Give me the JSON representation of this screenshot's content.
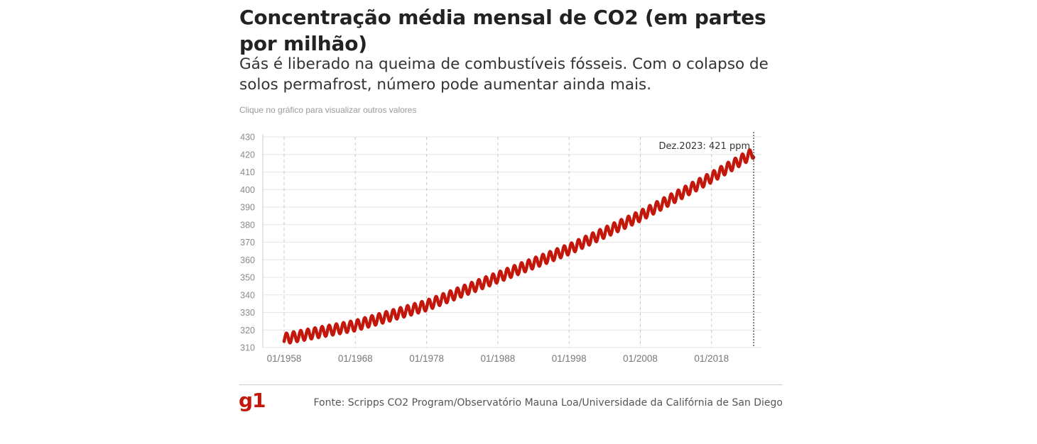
{
  "header": {
    "title": "Concentração média mensal de CO2 (em partes por milhão)",
    "subtitle": "Gás é liberado na queima de combustíveis fósseis. Com o colapso de solos permafrost, número pode aumentar ainda mais.",
    "hint": "Clique no gráfico para visualizar outros valores"
  },
  "footer": {
    "logo": "g1",
    "source": "Fonte: Scripps CO2 Program/Observatório Mauna Loa/Universidade da Califórnia de San Diego"
  },
  "colors": {
    "series": "#c4170c",
    "brand": "#c4170c",
    "grid": "#e6e6e6",
    "vgrid": "#c8c8c8"
  },
  "chart_data": {
    "type": "line",
    "title": "Concentração média mensal de CO2 (em partes por milhão)",
    "ylim": [
      310,
      430
    ],
    "yticks": [
      310,
      320,
      330,
      340,
      350,
      360,
      370,
      380,
      390,
      400,
      410,
      420,
      430
    ],
    "xrange": [
      "01/1958",
      "12/2023"
    ],
    "xticks": [
      "01/1958",
      "01/1968",
      "01/1978",
      "01/1988",
      "01/1998",
      "01/2008",
      "01/2018"
    ],
    "grid": true,
    "series": [
      {
        "frequency": "monthly",
        "seasonal_amplitude_ppm": 3,
        "trend": [
          {
            "date": "01/1958",
            "ppm": 315
          },
          {
            "date": "01/1968",
            "ppm": 322.5
          },
          {
            "date": "01/1978",
            "ppm": 334
          },
          {
            "date": "01/1988",
            "ppm": 350
          },
          {
            "date": "01/1998",
            "ppm": 366
          },
          {
            "date": "01/2008",
            "ppm": 385
          },
          {
            "date": "01/2018",
            "ppm": 407
          },
          {
            "date": "12/2023",
            "ppm": 421
          }
        ]
      }
    ],
    "annotation": {
      "date": "12/2023",
      "text": "Dez.2023: 421 ppm"
    }
  }
}
